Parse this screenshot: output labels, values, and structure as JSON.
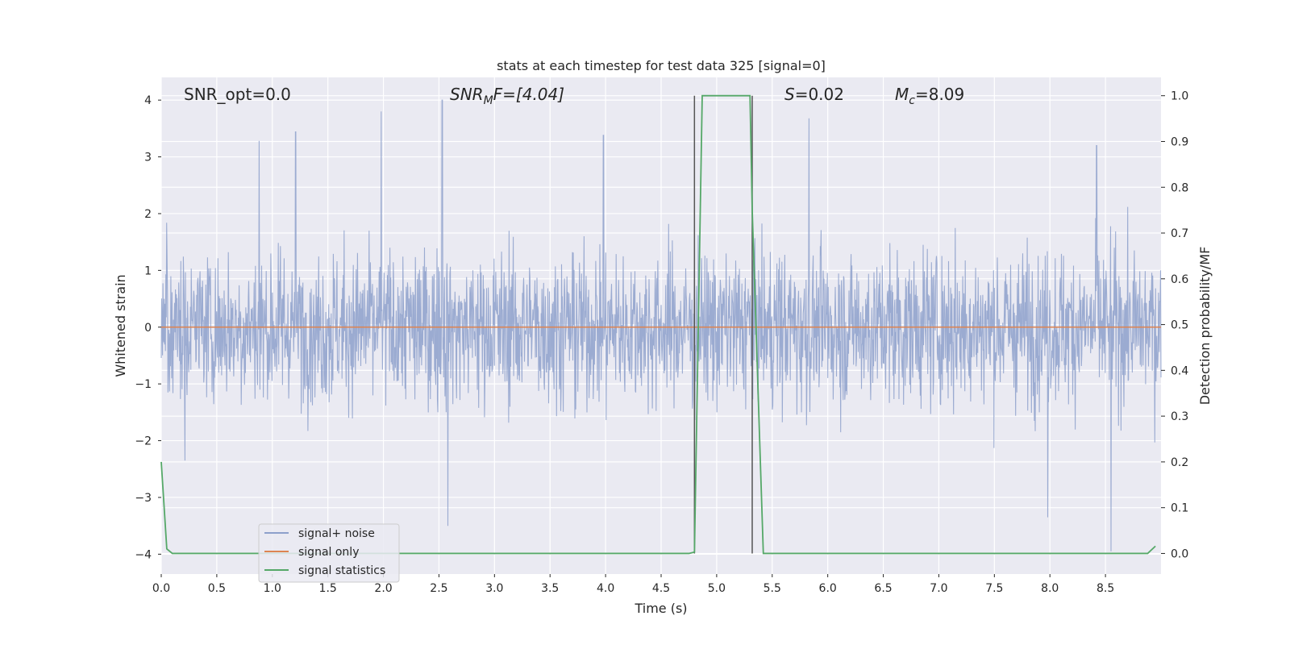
{
  "chart_data": {
    "type": "line",
    "title": "stats at each timestep for test data 325 [signal=0]",
    "xlabel": "Time (s)",
    "ylabel": "Whitened strain",
    "y2label": "Detection probability/MF",
    "xlim": [
      0.0,
      9.0
    ],
    "ylim": [
      -4.35,
      4.4
    ],
    "y2lim": [
      -0.045,
      1.04
    ],
    "x_ticks": [
      0.0,
      0.5,
      1.0,
      1.5,
      2.0,
      2.5,
      3.0,
      3.5,
      4.0,
      4.5,
      5.0,
      5.5,
      6.0,
      6.5,
      7.0,
      7.5,
      8.0,
      8.5
    ],
    "x_tick_labels": [
      "0.0",
      "0.5",
      "1.0",
      "1.5",
      "2.0",
      "2.5",
      "3.0",
      "3.5",
      "4.0",
      "4.5",
      "5.0",
      "5.5",
      "6.0",
      "6.5",
      "7.0",
      "7.5",
      "8.0",
      "8.5"
    ],
    "y_ticks": [
      -4,
      -3,
      -2,
      -1,
      0,
      1,
      2,
      3,
      4
    ],
    "y_tick_labels": [
      "−4",
      "−3",
      "−2",
      "−1",
      "0",
      "1",
      "2",
      "3",
      "4"
    ],
    "y2_ticks": [
      0.0,
      0.1,
      0.2,
      0.3,
      0.4,
      0.5,
      0.6,
      0.7,
      0.8,
      0.9,
      1.0
    ],
    "y2_tick_labels": [
      "0.0",
      "0.1",
      "0.2",
      "0.3",
      "0.4",
      "0.5",
      "0.6",
      "0.7",
      "0.8",
      "0.9",
      "1.0"
    ],
    "grid": true,
    "legend_position": "lower-left",
    "annotations": {
      "snr_opt": "SNR_opt=0.0",
      "snr_mf_main": "SNR",
      "snr_mf_sub": "M",
      "snr_mf_rest": "F=[4.04]",
      "s_name": "S",
      "s_value": "=0.02",
      "mc_name": "M",
      "mc_sub": "c",
      "mc_value": "=8.09"
    },
    "series": [
      {
        "name": "signal+ noise",
        "color": "#8da0cb",
        "axis": "left",
        "style": "dense noise trace",
        "x_range": [
          0.0,
          9.0
        ],
        "typical_band": [
          -1.6,
          1.6
        ],
        "max_value": 4.0,
        "min_value": -3.95,
        "peaks": [
          {
            "x": 0.88,
            "y": 3.28
          },
          {
            "x": 1.21,
            "y": 3.44
          },
          {
            "x": 1.98,
            "y": 3.8
          },
          {
            "x": 2.53,
            "y": 4.0
          },
          {
            "x": 3.98,
            "y": 3.38
          },
          {
            "x": 5.83,
            "y": 3.68
          },
          {
            "x": 8.42,
            "y": 3.2
          },
          {
            "x": 2.58,
            "y": -3.5
          },
          {
            "x": 7.98,
            "y": -3.35
          },
          {
            "x": 8.55,
            "y": -3.95
          }
        ]
      },
      {
        "name": "signal only",
        "color": "#dd8452",
        "axis": "left",
        "x": [
          0.0,
          9.0
        ],
        "y": [
          0.0,
          0.0
        ]
      },
      {
        "name": "signal statistics",
        "color": "#55a868",
        "axis": "right",
        "x": [
          0.0,
          0.05,
          0.1,
          0.15,
          0.7,
          0.8,
          4.75,
          4.8,
          4.87,
          4.9,
          5.3,
          5.32,
          5.42,
          5.45,
          8.88,
          8.95
        ],
        "y": [
          0.2,
          0.01,
          0.0,
          0.0,
          0.0,
          0.0,
          0.0,
          0.003,
          1.0,
          1.0,
          1.0,
          0.75,
          0.0,
          0.0,
          0.0,
          0.016
        ]
      }
    ],
    "vertical_markers": [
      {
        "x": 4.8,
        "y2": [
          0.0,
          1.0
        ],
        "color": "#555555"
      },
      {
        "x": 5.32,
        "y2": [
          0.0,
          1.0
        ],
        "color": "#555555"
      }
    ]
  }
}
